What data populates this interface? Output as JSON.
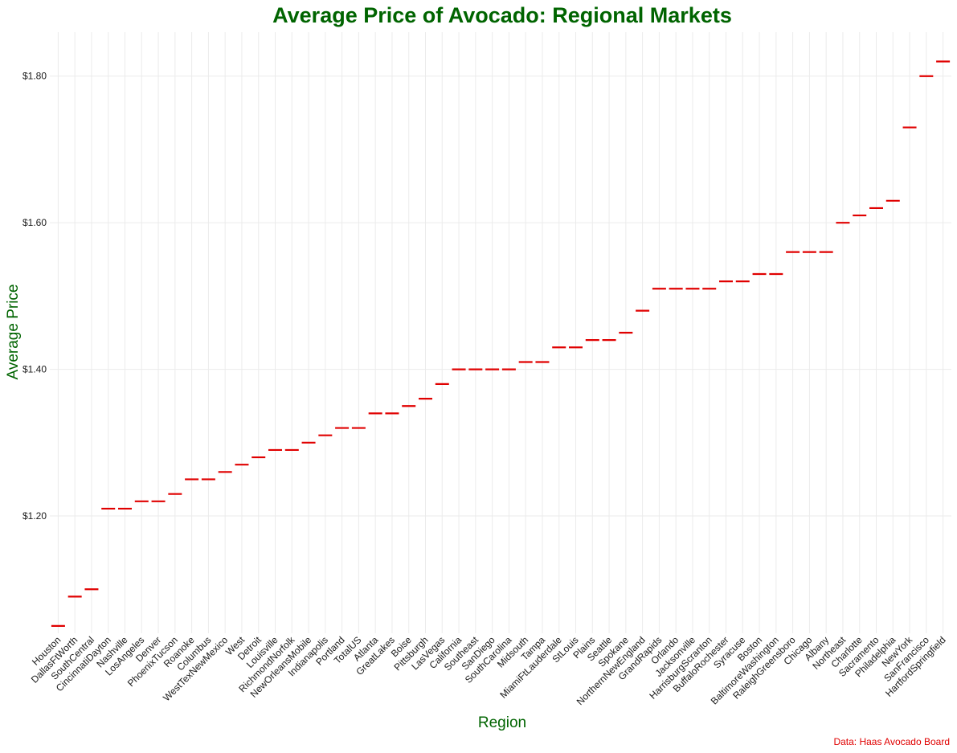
{
  "chart_data": {
    "type": "scatter",
    "marker": "dash",
    "title": "Average Price of Avocado: Regional Markets",
    "xlabel": "Region",
    "ylabel": "Average Price",
    "caption": "Data: Haas Avocado Board",
    "y_ticks": [
      1.2,
      1.4,
      1.6,
      1.8
    ],
    "y_tick_labels": [
      "$1.20",
      "$1.40",
      "$1.60",
      "$1.80"
    ],
    "ylim": [
      1.04,
      1.86
    ],
    "grid": true,
    "point_color": "#e00000",
    "title_color": "#006400",
    "categories": [
      "Houston",
      "DallasFtWorth",
      "SouthCentral",
      "CincinnatiDayton",
      "Nashville",
      "LosAngeles",
      "Denver",
      "PhoenixTucson",
      "Roanoke",
      "Columbus",
      "WestTexNewMexico",
      "West",
      "Detroit",
      "Louisville",
      "RichmondNorfolk",
      "NewOrleansMobile",
      "Indianapolis",
      "Portland",
      "TotalUS",
      "Atlanta",
      "GreatLakes",
      "Boise",
      "Pittsburgh",
      "LasVegas",
      "California",
      "Southeast",
      "SanDiego",
      "SouthCarolina",
      "Midsouth",
      "Tampa",
      "MiamiFtLauderdale",
      "StLouis",
      "Plains",
      "Seattle",
      "Spokane",
      "NorthernNewEngland",
      "GrandRapids",
      "Orlando",
      "Jacksonville",
      "HarrisburgScranton",
      "BuffaloRochester",
      "Syracuse",
      "Boston",
      "BaltimoreWashington",
      "RaleighGreensboro",
      "Chicago",
      "Albany",
      "Northeast",
      "Charlotte",
      "Sacramento",
      "Philadelphia",
      "NewYork",
      "SanFrancisco",
      "HartfordSpringfield"
    ],
    "values": [
      1.05,
      1.09,
      1.1,
      1.21,
      1.21,
      1.22,
      1.22,
      1.23,
      1.25,
      1.25,
      1.26,
      1.27,
      1.28,
      1.29,
      1.29,
      1.3,
      1.31,
      1.32,
      1.32,
      1.34,
      1.34,
      1.35,
      1.36,
      1.38,
      1.4,
      1.4,
      1.4,
      1.4,
      1.41,
      1.41,
      1.43,
      1.43,
      1.44,
      1.44,
      1.45,
      1.48,
      1.51,
      1.51,
      1.51,
      1.51,
      1.52,
      1.52,
      1.53,
      1.53,
      1.56,
      1.56,
      1.56,
      1.6,
      1.61,
      1.62,
      1.63,
      1.73,
      1.8,
      1.82
    ]
  }
}
